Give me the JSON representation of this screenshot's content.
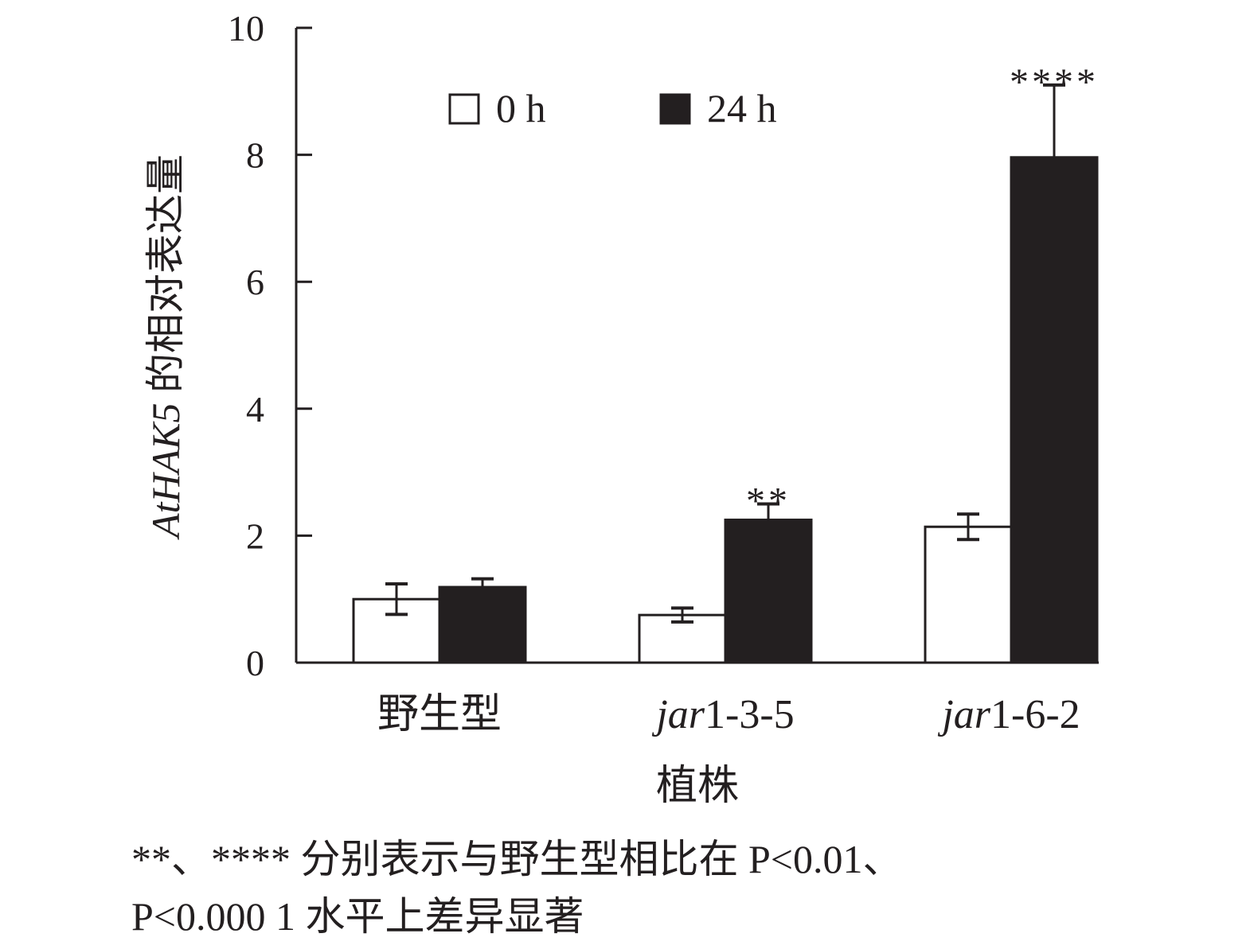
{
  "chart_data": {
    "type": "bar",
    "title": "",
    "xlabel": "植株",
    "ylabel_italic": "AtHAK5",
    "ylabel_rest": " 的相对表达量",
    "ylim": [
      0,
      10
    ],
    "yticks": [
      0,
      2,
      4,
      6,
      8,
      10
    ],
    "grid": false,
    "legend_placement": "top-left",
    "categories": [
      {
        "italic": "",
        "rest": "野生型"
      },
      {
        "italic": "jar",
        "rest": "1-3-5"
      },
      {
        "italic": "jar",
        "rest": "1-6-2"
      }
    ],
    "series": [
      {
        "name": "0 h",
        "color": "#ffffff",
        "values": [
          1.0,
          0.75,
          2.14
        ],
        "errors": [
          0.24,
          0.11,
          0.2
        ]
      },
      {
        "name": "24 h",
        "color": "#231f20",
        "values": [
          1.19,
          2.25,
          7.96
        ],
        "errors": [
          0.13,
          0.25,
          1.14
        ]
      }
    ],
    "annotations": [
      {
        "category": 1,
        "series": 1,
        "text": "**"
      },
      {
        "category": 2,
        "series": 1,
        "text": "****"
      }
    ]
  },
  "footnote": {
    "line1": "**、**** 分别表示与野生型相比在 P<0.01、",
    "line2": "P<0.000 1 水平上差异显著"
  }
}
